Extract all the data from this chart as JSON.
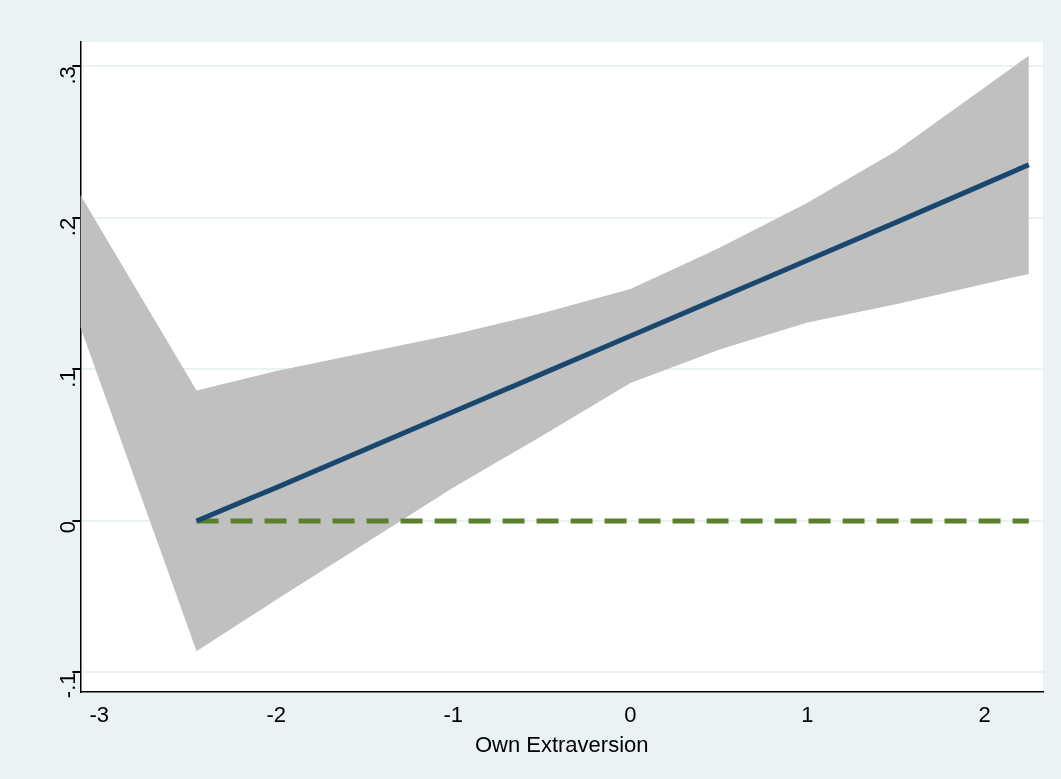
{
  "chart_data": {
    "type": "line",
    "xlabel": "Own Extraversion",
    "xlim": [
      -3.106,
      2.33
    ],
    "ylim": [
      -0.113,
      0.316
    ],
    "xticks": [
      -3,
      -2,
      -1,
      0,
      1,
      2
    ],
    "yticks": [
      {
        "value": -0.1,
        "label": "-.1"
      },
      0,
      {
        "value": 0.1,
        "label": ".1"
      },
      {
        "value": 0.2,
        "label": ".2"
      },
      {
        "value": 0.3,
        "label": ".3"
      }
    ],
    "grid": "y",
    "legend": false,
    "marker": "none",
    "series": [
      {
        "color": "#1a476f",
        "line_style": "solid",
        "x": [
          -3.106,
          -2.45,
          -2,
          -1,
          -0.5,
          0,
          0.5,
          1,
          1.5,
          2.25
        ],
        "values": [
          null,
          0,
          0.022,
          0.072,
          0.097,
          0.122,
          0.147,
          0.172,
          0.197,
          0.235
        ],
        "lower": [
          0.128,
          -0.086,
          -0.052,
          0.022,
          0.056,
          0.091,
          0.113,
          0.131,
          0.143,
          0.163
        ],
        "upper": [
          0.215,
          0.086,
          0.099,
          0.123,
          0.137,
          0.153,
          0.18,
          0.21,
          0.244,
          0.307
        ]
      },
      {
        "color": "#5b7f2a",
        "line_style": "dashed",
        "x": [
          -2.45,
          2.25
        ],
        "values": [
          0,
          0
        ]
      }
    ]
  }
}
